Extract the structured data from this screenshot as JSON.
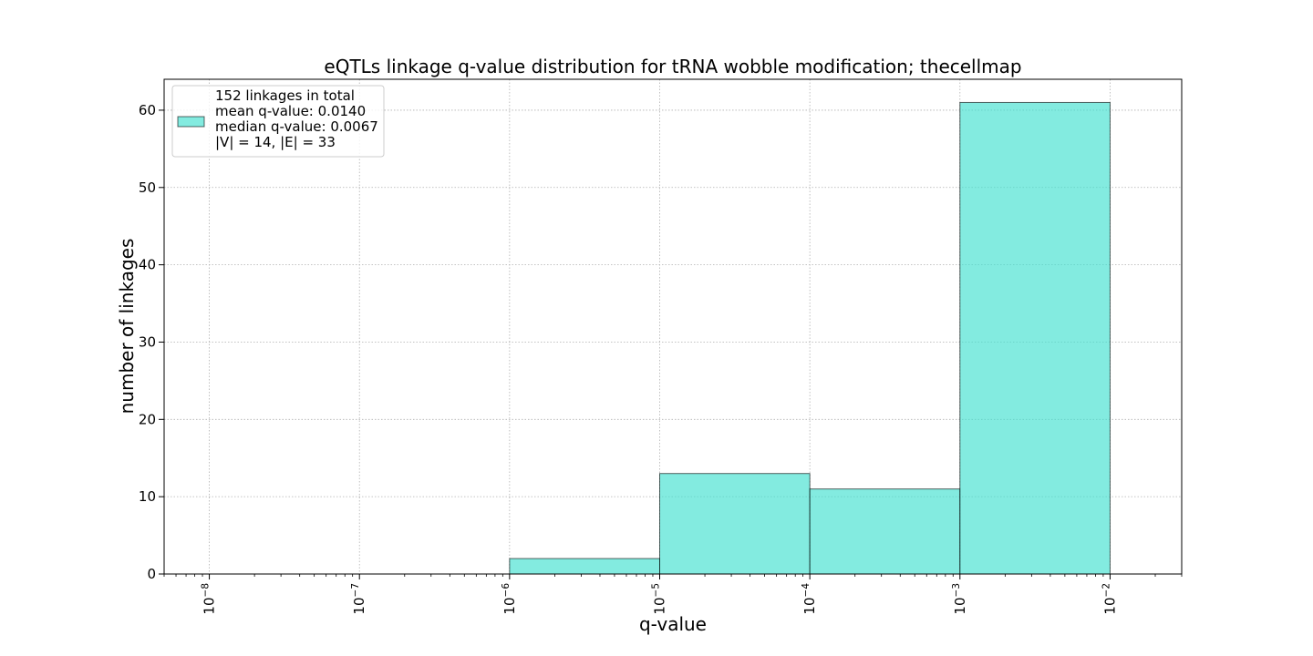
{
  "chart_data": {
    "type": "bar",
    "title": "eQTLs linkage q-value distribution for tRNA wobble modification; thecellmap",
    "xlabel": "q-value",
    "ylabel": "number of linkages",
    "x_scale": "log",
    "xlim": [
      5e-09,
      0.03
    ],
    "ylim": [
      0,
      64
    ],
    "grid": true,
    "legend_position": "top-left",
    "bin_edges": [
      1e-08,
      1e-07,
      1e-06,
      1e-05,
      0.0001,
      0.001,
      0.01
    ],
    "values": [
      0,
      0,
      2,
      13,
      11,
      61
    ],
    "x_ticks": [
      {
        "value": 1e-08,
        "label": "10",
        "exp": "−8"
      },
      {
        "value": 1e-07,
        "label": "10",
        "exp": "−7"
      },
      {
        "value": 1e-06,
        "label": "10",
        "exp": "−6"
      },
      {
        "value": 1e-05,
        "label": "10",
        "exp": "−5"
      },
      {
        "value": 0.0001,
        "label": "10",
        "exp": "−4"
      },
      {
        "value": 0.001,
        "label": "10",
        "exp": "−3"
      },
      {
        "value": 0.01,
        "label": "10",
        "exp": "−2"
      }
    ],
    "y_ticks": [
      0,
      10,
      20,
      30,
      40,
      50,
      60
    ],
    "legend_lines": [
      "152 linkages in total",
      "mean q-value: 0.0140",
      "median q-value: 0.0067",
      "|V| = 14, |E| = 33"
    ],
    "colors": {
      "bar_fill": "#40e0d0",
      "bar_edge": "#000000",
      "grid": "#b0b0b0"
    }
  }
}
